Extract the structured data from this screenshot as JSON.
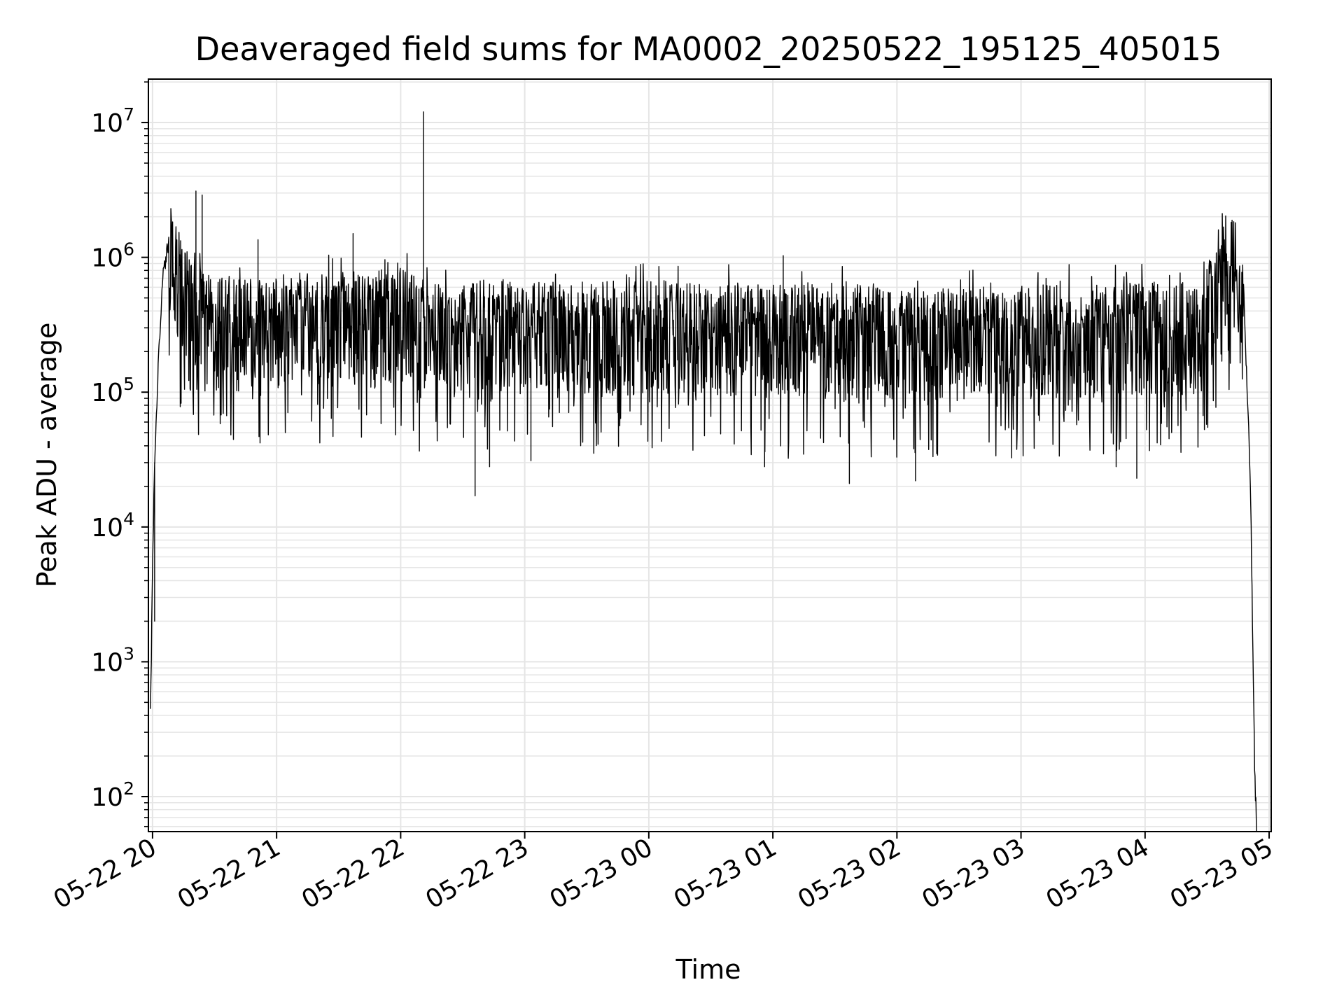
{
  "chart_data": {
    "type": "line",
    "title": "Deaveraged field sums for MA0002_20250522_195125_405015",
    "xlabel": "Time",
    "ylabel": "Peak ADU - average",
    "yscale": "log",
    "ylim": [
      55,
      21000000
    ],
    "xlim": [
      "2025-05-22 19:58",
      "2025-05-23 05:01"
    ],
    "grid": true,
    "line_color": "#000000",
    "grid_color": "#e5e5e5",
    "x_ticks": [
      {
        "value": "2025-05-22 20:00",
        "label": "05-22 20"
      },
      {
        "value": "2025-05-22 21:00",
        "label": "05-22 21"
      },
      {
        "value": "2025-05-22 22:00",
        "label": "05-22 22"
      },
      {
        "value": "2025-05-22 23:00",
        "label": "05-22 23"
      },
      {
        "value": "2025-05-23 00:00",
        "label": "05-23 00"
      },
      {
        "value": "2025-05-23 01:00",
        "label": "05-23 01"
      },
      {
        "value": "2025-05-23 02:00",
        "label": "05-23 02"
      },
      {
        "value": "2025-05-23 03:00",
        "label": "05-23 03"
      },
      {
        "value": "2025-05-23 04:00",
        "label": "05-23 04"
      },
      {
        "value": "2025-05-23 05:00",
        "label": "05-23 05"
      }
    ],
    "y_ticks": [
      {
        "value": 100,
        "base": "10",
        "exp": "2"
      },
      {
        "value": 1000,
        "base": "10",
        "exp": "3"
      },
      {
        "value": 10000,
        "base": "10",
        "exp": "4"
      },
      {
        "value": 100000,
        "base": "10",
        "exp": "5"
      },
      {
        "value": 1000000,
        "base": "10",
        "exp": "6"
      },
      {
        "value": 10000000,
        "base": "10",
        "exp": "7"
      }
    ],
    "series": [
      {
        "x": [
          "2025-05-22 19:59",
          "2025-05-22 20:00",
          "2025-05-22 20:01",
          "2025-05-22 20:03",
          "2025-05-22 20:05",
          "2025-05-22 20:08",
          "2025-05-22 20:10",
          "2025-05-22 20:13",
          "2025-05-22 20:16",
          "2025-05-22 20:20",
          "2025-05-22 20:25",
          "2025-05-22 20:30",
          "2025-05-22 20:40",
          "2025-05-22 20:50",
          "2025-05-22 21:00",
          "2025-05-22 21:15",
          "2025-05-22 21:30",
          "2025-05-22 21:45",
          "2025-05-22 22:00",
          "2025-05-22 22:10",
          "2025-05-22 22:20",
          "2025-05-22 22:30",
          "2025-05-22 22:45",
          "2025-05-22 23:00",
          "2025-05-22 23:30",
          "2025-05-23 00:00",
          "2025-05-23 00:30",
          "2025-05-23 01:00",
          "2025-05-23 01:30",
          "2025-05-23 02:00",
          "2025-05-23 02:30",
          "2025-05-23 03:00",
          "2025-05-23 03:30",
          "2025-05-23 04:00",
          "2025-05-23 04:15",
          "2025-05-23 04:25",
          "2025-05-23 04:32",
          "2025-05-23 04:38",
          "2025-05-23 04:42",
          "2025-05-23 04:45",
          "2025-05-23 04:48",
          "2025-05-23 04:51",
          "2025-05-23 04:53",
          "2025-05-23 04:54"
        ],
        "y": [
          400,
          5000,
          30000,
          200000,
          700000,
          1400000,
          1200000,
          800000,
          600000,
          450000,
          400000,
          380000,
          360000,
          350000,
          380000,
          400000,
          390000,
          380000,
          420000,
          360000,
          330000,
          320000,
          330000,
          340000,
          330000,
          340000,
          330000,
          320000,
          330000,
          300000,
          300000,
          310000,
          320000,
          330000,
          330000,
          350000,
          500000,
          900000,
          1100000,
          900000,
          400000,
          20000,
          150,
          60
        ]
      }
    ],
    "spikes": [
      {
        "x": "2025-05-22 20:01",
        "y": 2000
      },
      {
        "x": "2025-05-22 20:21",
        "y": 3100000
      },
      {
        "x": "2025-05-22 20:24",
        "y": 2900000
      },
      {
        "x": "2025-05-22 20:51",
        "y": 1350000
      },
      {
        "x": "2025-05-22 20:52",
        "y": 42000
      },
      {
        "x": "2025-05-22 21:37",
        "y": 1500000
      },
      {
        "x": "2025-05-22 22:11",
        "y": 12000000
      },
      {
        "x": "2025-05-22 22:36",
        "y": 17000
      },
      {
        "x": "2025-05-22 22:43",
        "y": 28000
      },
      {
        "x": "2025-05-22 23:03",
        "y": 31000
      },
      {
        "x": "2025-05-23 00:56",
        "y": 28000
      },
      {
        "x": "2025-05-23 01:05",
        "y": 1030000
      },
      {
        "x": "2025-05-23 01:37",
        "y": 21000
      },
      {
        "x": "2025-05-23 02:09",
        "y": 22000
      },
      {
        "x": "2025-05-23 03:46",
        "y": 28000
      },
      {
        "x": "2025-05-23 03:56",
        "y": 23000
      }
    ]
  }
}
